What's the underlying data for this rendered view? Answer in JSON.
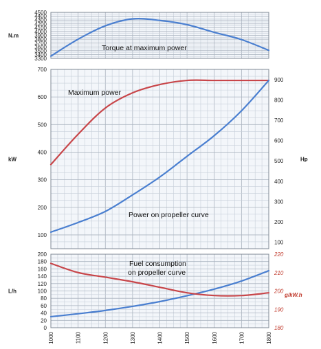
{
  "chart_data": [
    {
      "type": "line",
      "panel": "torque",
      "ylabel": "N.m",
      "ylim": [
        3300,
        4500
      ],
      "yticks": [
        3300,
        3400,
        3500,
        3600,
        3700,
        3800,
        3900,
        4000,
        4100,
        4200,
        4300,
        4400,
        4500
      ],
      "xlim": [
        1000,
        1800
      ],
      "grid": true,
      "annotations": [
        {
          "text": "Torque at maximum power"
        }
      ],
      "series": [
        {
          "color": "#4a7fd0",
          "x": [
            1000,
            1100,
            1200,
            1300,
            1400,
            1500,
            1600,
            1700,
            1800
          ],
          "y": [
            3360,
            3800,
            4150,
            4330,
            4290,
            4180,
            3980,
            3790,
            3510
          ]
        }
      ]
    },
    {
      "type": "line",
      "panel": "power",
      "ylabel": "kW",
      "y2label": "Hp",
      "ylim": [
        50,
        700
      ],
      "yticks": [
        100,
        200,
        300,
        400,
        500,
        600,
        700
      ],
      "y2lim": [
        68,
        950
      ],
      "y2ticks": [
        100,
        200,
        300,
        400,
        500,
        600,
        700,
        800,
        900
      ],
      "xlim": [
        1000,
        1800
      ],
      "grid": true,
      "annotations": [
        {
          "text": "Maximum power"
        },
        {
          "text": "Power on propeller curve"
        }
      ],
      "series": [
        {
          "color": "#c8464a",
          "axis": "left",
          "x": [
            1000,
            1100,
            1200,
            1300,
            1400,
            1500,
            1600,
            1700,
            1800
          ],
          "y": [
            355,
            465,
            560,
            615,
            645,
            660,
            660,
            660,
            660
          ]
        },
        {
          "color": "#4a7fd0",
          "axis": "left",
          "x": [
            1000,
            1100,
            1200,
            1300,
            1400,
            1500,
            1600,
            1700,
            1800
          ],
          "y": [
            110,
            145,
            185,
            245,
            310,
            385,
            460,
            550,
            660
          ]
        }
      ]
    },
    {
      "type": "line",
      "panel": "fuel",
      "ylabel": "L/h",
      "y2label": "g/kW.h",
      "ylim": [
        0,
        200
      ],
      "yticks": [
        0,
        20,
        40,
        60,
        80,
        100,
        120,
        140,
        160,
        180,
        200
      ],
      "y2lim": [
        180,
        220
      ],
      "y2ticks": [
        180,
        190,
        200,
        210,
        220
      ],
      "xlim": [
        1000,
        1800
      ],
      "xticks": [
        1000,
        1100,
        1200,
        1300,
        1400,
        1500,
        1600,
        1700,
        1800
      ],
      "grid": true,
      "annotations": [
        {
          "text": "Fuel consumption"
        },
        {
          "text": "on propeller curve"
        }
      ],
      "series": [
        {
          "color": "#4a7fd0",
          "axis": "left",
          "x": [
            1000,
            1100,
            1200,
            1300,
            1400,
            1500,
            1600,
            1700,
            1800
          ],
          "y": [
            30,
            38,
            47,
            58,
            71,
            87,
            105,
            127,
            155
          ]
        },
        {
          "color": "#c8464a",
          "axis": "right",
          "x": [
            1000,
            1100,
            1200,
            1300,
            1400,
            1500,
            1600,
            1700,
            1800
          ],
          "y": [
            215,
            210,
            207.5,
            205,
            202,
            199,
            197.5,
            197.5,
            199
          ]
        }
      ]
    }
  ]
}
